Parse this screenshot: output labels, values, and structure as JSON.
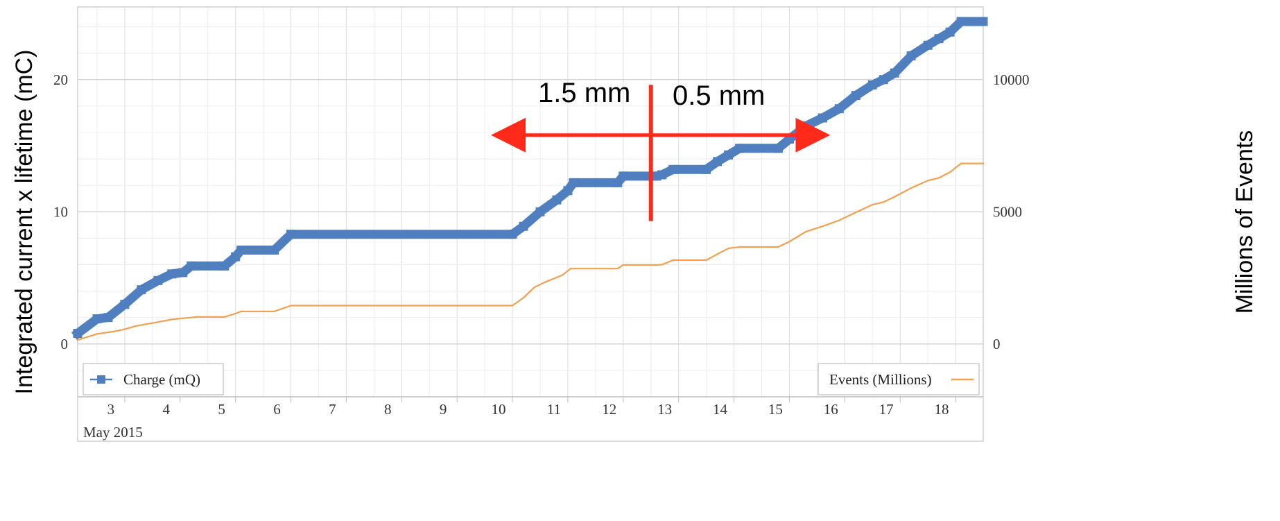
{
  "chart_data": {
    "type": "line",
    "x_unit": "day of May 2015",
    "x_range": [
      2.15,
      18.5
    ],
    "x_ticks": [
      3,
      4,
      5,
      6,
      7,
      8,
      9,
      10,
      11,
      12,
      13,
      14,
      15,
      16,
      17,
      18
    ],
    "x_tick_labels": [
      "3",
      "4",
      "5",
      "6",
      "7",
      "8",
      "9",
      "10",
      "11",
      "12",
      "13",
      "14",
      "15",
      "16",
      "17",
      "18"
    ],
    "x_month_label": "May 2015",
    "y_left": {
      "label": "Integrated current x lifetime (mC)",
      "range": [
        -4,
        25.5
      ],
      "ticks": [
        0,
        10,
        20
      ],
      "tick_labels": [
        "0",
        "10",
        "20"
      ]
    },
    "y_right": {
      "label": "Millions of Events",
      "range": [
        -2000,
        12750
      ],
      "ticks": [
        0,
        5000,
        10000
      ],
      "tick_labels": [
        "0",
        "5000",
        "10000"
      ]
    },
    "grid": true,
    "series": [
      {
        "name": "Charge (mQ)",
        "axis": "left",
        "color": "#4f7fbf",
        "marker": "square",
        "points": [
          [
            2.15,
            0.8
          ],
          [
            2.5,
            1.9
          ],
          [
            2.7,
            2.0
          ],
          [
            3.0,
            3.0
          ],
          [
            3.3,
            4.1
          ],
          [
            3.6,
            4.8
          ],
          [
            3.85,
            5.3
          ],
          [
            4.05,
            5.4
          ],
          [
            4.2,
            5.9
          ],
          [
            4.8,
            5.9
          ],
          [
            5.0,
            6.6
          ],
          [
            5.1,
            7.1
          ],
          [
            5.7,
            7.1
          ],
          [
            6.0,
            8.3
          ],
          [
            10.0,
            8.3
          ],
          [
            10.2,
            8.9
          ],
          [
            10.5,
            10.0
          ],
          [
            10.8,
            10.9
          ],
          [
            11.0,
            11.6
          ],
          [
            11.1,
            12.2
          ],
          [
            11.9,
            12.2
          ],
          [
            12.0,
            12.7
          ],
          [
            12.6,
            12.7
          ],
          [
            12.7,
            12.8
          ],
          [
            12.9,
            13.2
          ],
          [
            13.5,
            13.2
          ],
          [
            13.7,
            13.8
          ],
          [
            13.9,
            14.3
          ],
          [
            14.1,
            14.8
          ],
          [
            14.8,
            14.8
          ],
          [
            15.0,
            15.5
          ],
          [
            15.3,
            16.5
          ],
          [
            15.6,
            17.1
          ],
          [
            15.9,
            17.8
          ],
          [
            16.2,
            18.8
          ],
          [
            16.5,
            19.6
          ],
          [
            16.7,
            20.0
          ],
          [
            16.9,
            20.5
          ],
          [
            17.2,
            21.8
          ],
          [
            17.5,
            22.6
          ],
          [
            17.7,
            23.1
          ],
          [
            17.9,
            23.6
          ],
          [
            18.1,
            24.4
          ],
          [
            18.5,
            24.4
          ]
        ]
      },
      {
        "name": "Events (Millions)",
        "axis": "right",
        "color": "#f0a050",
        "marker": "none",
        "points": [
          [
            2.15,
            150
          ],
          [
            2.5,
            380
          ],
          [
            2.8,
            470
          ],
          [
            3.0,
            560
          ],
          [
            3.2,
            680
          ],
          [
            3.6,
            830
          ],
          [
            3.85,
            930
          ],
          [
            4.05,
            970
          ],
          [
            4.3,
            1020
          ],
          [
            4.8,
            1020
          ],
          [
            5.0,
            1150
          ],
          [
            5.1,
            1230
          ],
          [
            5.7,
            1230
          ],
          [
            6.0,
            1450
          ],
          [
            10.0,
            1450
          ],
          [
            10.2,
            1750
          ],
          [
            10.4,
            2150
          ],
          [
            10.6,
            2350
          ],
          [
            10.9,
            2600
          ],
          [
            11.05,
            2850
          ],
          [
            11.9,
            2850
          ],
          [
            12.0,
            2990
          ],
          [
            12.6,
            2990
          ],
          [
            12.7,
            3000
          ],
          [
            12.9,
            3170
          ],
          [
            13.5,
            3170
          ],
          [
            13.7,
            3400
          ],
          [
            13.9,
            3620
          ],
          [
            14.1,
            3670
          ],
          [
            14.8,
            3670
          ],
          [
            15.0,
            3870
          ],
          [
            15.3,
            4250
          ],
          [
            15.6,
            4450
          ],
          [
            15.9,
            4680
          ],
          [
            16.2,
            4980
          ],
          [
            16.5,
            5270
          ],
          [
            16.7,
            5370
          ],
          [
            16.9,
            5570
          ],
          [
            17.2,
            5900
          ],
          [
            17.5,
            6180
          ],
          [
            17.7,
            6280
          ],
          [
            17.9,
            6500
          ],
          [
            18.1,
            6830
          ],
          [
            18.5,
            6830
          ]
        ]
      }
    ],
    "legend": [
      {
        "label": "Charge (mQ)",
        "placement": "bottom-left"
      },
      {
        "label": "Events (Millions)",
        "placement": "bottom-right"
      }
    ],
    "annotations": [
      {
        "text": "1.5 mm",
        "type": "text"
      },
      {
        "text": "0.5 mm",
        "type": "text"
      },
      {
        "type": "vertical-line",
        "x": 12.5,
        "y_range": [
          9.3,
          19.6
        ],
        "color": "#ff2a1a"
      },
      {
        "type": "double-arrow",
        "x_range": [
          9.85,
          15.5
        ],
        "y": 15.8,
        "color": "#ff2a1a"
      }
    ]
  }
}
